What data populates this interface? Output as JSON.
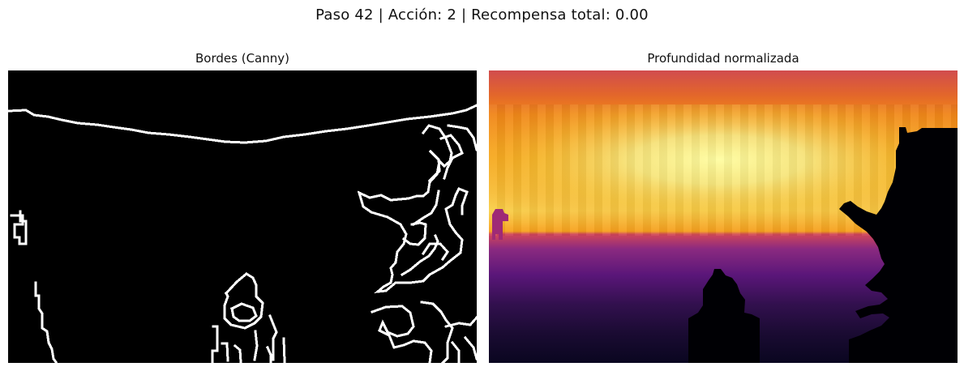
{
  "figure": {
    "title": "Paso 42 | Acción: 2 | Recompensa total: 0.00"
  },
  "panels": [
    {
      "title": "Bordes (Canny)",
      "image": "canny-edge-map"
    },
    {
      "title": "Profundidad normalizada",
      "image": "normalized-depth-map",
      "colormap": "inferno"
    }
  ],
  "colors": {
    "edge_background": "#000000",
    "edge_lines": "#ffffff",
    "depth_near": "#ffffa4",
    "depth_mid": "#f98c0a",
    "depth_far": "#000004",
    "depth_top": "#d14c4e"
  }
}
